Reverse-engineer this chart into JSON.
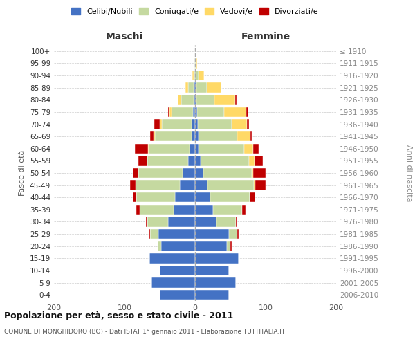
{
  "age_groups": [
    "0-4",
    "5-9",
    "10-14",
    "15-19",
    "20-24",
    "25-29",
    "30-34",
    "35-39",
    "40-44",
    "45-49",
    "50-54",
    "55-59",
    "60-64",
    "65-69",
    "70-74",
    "75-79",
    "80-84",
    "85-89",
    "90-94",
    "95-99",
    "100+"
  ],
  "birth_years": [
    "2006-2010",
    "2001-2005",
    "1996-2000",
    "1991-1995",
    "1986-1990",
    "1981-1985",
    "1976-1980",
    "1971-1975",
    "1966-1970",
    "1961-1965",
    "1956-1960",
    "1951-1955",
    "1946-1950",
    "1941-1945",
    "1936-1940",
    "1931-1935",
    "1926-1930",
    "1921-1925",
    "1916-1920",
    "1911-1915",
    "≤ 1910"
  ],
  "males": {
    "celibi": [
      50,
      62,
      50,
      65,
      48,
      52,
      38,
      30,
      28,
      22,
      18,
      10,
      8,
      5,
      5,
      3,
      2,
      2,
      0,
      0,
      0
    ],
    "coniugati": [
      0,
      0,
      0,
      0,
      5,
      12,
      30,
      48,
      55,
      62,
      62,
      58,
      58,
      52,
      42,
      30,
      18,
      8,
      2,
      1,
      0
    ],
    "vedovi": [
      0,
      0,
      0,
      0,
      0,
      0,
      0,
      0,
      0,
      0,
      0,
      0,
      1,
      2,
      3,
      3,
      5,
      4,
      2,
      0,
      0
    ],
    "divorziati": [
      0,
      0,
      0,
      0,
      0,
      2,
      2,
      5,
      5,
      8,
      8,
      12,
      18,
      5,
      8,
      2,
      0,
      0,
      0,
      0,
      0
    ]
  },
  "females": {
    "nubili": [
      48,
      58,
      48,
      62,
      45,
      48,
      30,
      25,
      22,
      18,
      12,
      8,
      5,
      5,
      4,
      3,
      2,
      2,
      0,
      0,
      0
    ],
    "coniugate": [
      0,
      0,
      0,
      0,
      5,
      12,
      28,
      42,
      55,
      65,
      68,
      68,
      65,
      55,
      48,
      38,
      25,
      15,
      5,
      1,
      0
    ],
    "vedove": [
      0,
      0,
      0,
      0,
      0,
      0,
      0,
      0,
      0,
      2,
      2,
      8,
      12,
      18,
      22,
      32,
      30,
      20,
      8,
      2,
      0
    ],
    "divorziate": [
      0,
      0,
      0,
      0,
      2,
      2,
      2,
      5,
      8,
      15,
      18,
      12,
      8,
      2,
      2,
      2,
      2,
      0,
      0,
      0,
      0
    ]
  },
  "colors": {
    "celibi_nubili": "#4472C4",
    "coniugati": "#C5D9A0",
    "vedovi": "#FFD966",
    "divorziati": "#C00000"
  },
  "title": "Popolazione per età, sesso e stato civile - 2011",
  "subtitle": "COMUNE DI MONGHIDORO (BO) - Dati ISTAT 1° gennaio 2011 - Elaborazione TUTTITALIA.IT",
  "xlabel_left": "Maschi",
  "xlabel_right": "Femmine",
  "ylabel_left": "Fasce di età",
  "ylabel_right": "Anni di nascita",
  "xlim": 200,
  "bg_color": "#ffffff",
  "grid_color": "#cccccc"
}
